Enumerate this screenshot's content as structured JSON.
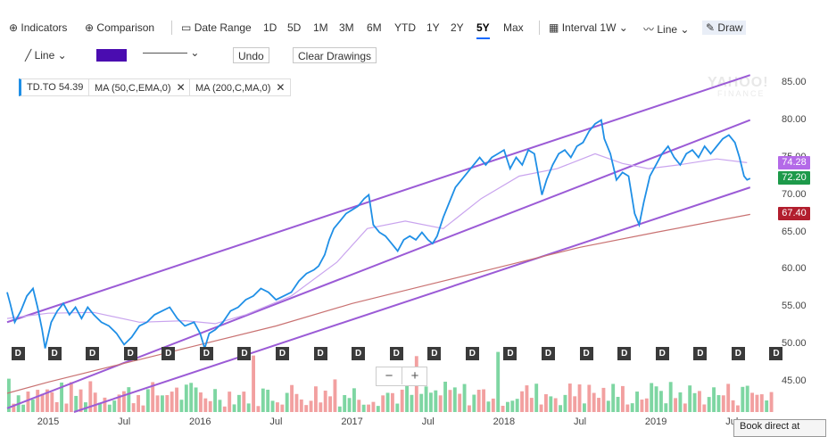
{
  "toolbar": {
    "indicators": "Indicators",
    "comparison": "Comparison",
    "date_range": "Date Range",
    "ranges": [
      "1D",
      "5D",
      "1M",
      "3M",
      "6M",
      "YTD",
      "1Y",
      "2Y",
      "5Y",
      "Max"
    ],
    "active_range": "5Y",
    "interval": "Interval",
    "interval_value": "1W",
    "chart_type": "Line",
    "draw": "Draw"
  },
  "drawbar": {
    "tool": "Line",
    "color": "#4a0cb0",
    "undo": "Undo",
    "clear": "Clear Drawings"
  },
  "legend": {
    "symbol": "TD.TO",
    "price": "54.39",
    "ma1": "MA (50,C,EMA,0)",
    "ma2": "MA (200,C,MA,0)",
    "close": "✕"
  },
  "watermark": {
    "line1": "YAHOO!",
    "line2": "FINANCE"
  },
  "zoom": {
    "minus": "−",
    "plus": "+"
  },
  "dividend_marker": "D",
  "book": "Book direct at",
  "price_tags": [
    {
      "label": "74.28",
      "value": 74.28,
      "color": "#b46ae8"
    },
    {
      "label": "72.20",
      "value": 72.2,
      "color": "#1d9a4a"
    },
    {
      "label": "67.40",
      "value": 67.4,
      "color": "#b21e2e"
    }
  ],
  "colors": {
    "price_line": "#1f8fe6",
    "ema50": "#c9a4ee",
    "ma200": "#c97272",
    "channel": "#9b5bd6",
    "vol_up": "#7ed6a2",
    "vol_down": "#f2a0a0"
  },
  "chart_data": {
    "type": "line",
    "x_labels": [
      "2015",
      "Jul",
      "2016",
      "Jul",
      "2017",
      "Jul",
      "2018",
      "Jul",
      "2019",
      "Jul"
    ],
    "x_label_times": [
      2015.0,
      2015.5,
      2016.0,
      2016.5,
      2017.0,
      2017.5,
      2018.0,
      2018.5,
      2019.0,
      2019.5
    ],
    "yticks": [
      "85.00",
      "80.00",
      "75.00",
      "70.00",
      "65.00",
      "60.00",
      "55.00",
      "50.00",
      "45.00"
    ],
    "ytick_values": [
      85,
      80,
      75,
      70,
      65,
      60,
      55,
      50,
      45
    ],
    "ylim": [
      41,
      86.5
    ],
    "xlim": [
      2014.73,
      2019.78
    ],
    "dividend_times": [
      2014.74,
      2014.98,
      2015.23,
      2015.48,
      2015.73,
      2015.98,
      2016.23,
      2016.48,
      2016.73,
      2016.98,
      2017.23,
      2017.48,
      2017.73,
      2017.98,
      2018.23,
      2018.48,
      2018.73,
      2018.98,
      2019.23,
      2019.48,
      2019.73
    ],
    "series": [
      {
        "name": "TD.TO",
        "values": [
          [
            2014.73,
            57.0
          ],
          [
            2014.75,
            55.5
          ],
          [
            2014.78,
            53.0
          ],
          [
            2014.82,
            54.5
          ],
          [
            2014.86,
            56.5
          ],
          [
            2014.9,
            57.5
          ],
          [
            2014.93,
            55.0
          ],
          [
            2014.96,
            52.0
          ],
          [
            2014.98,
            49.5
          ],
          [
            2015.02,
            53.0
          ],
          [
            2015.06,
            54.5
          ],
          [
            2015.1,
            55.5
          ],
          [
            2015.14,
            54.0
          ],
          [
            2015.18,
            55.0
          ],
          [
            2015.22,
            53.5
          ],
          [
            2015.26,
            55.0
          ],
          [
            2015.3,
            54.0
          ],
          [
            2015.35,
            53.0
          ],
          [
            2015.4,
            52.5
          ],
          [
            2015.45,
            51.5
          ],
          [
            2015.5,
            50.0
          ],
          [
            2015.55,
            51.0
          ],
          [
            2015.6,
            52.5
          ],
          [
            2015.65,
            53.0
          ],
          [
            2015.7,
            54.0
          ],
          [
            2015.75,
            54.5
          ],
          [
            2015.8,
            55.0
          ],
          [
            2015.85,
            53.5
          ],
          [
            2015.9,
            52.5
          ],
          [
            2015.96,
            53.0
          ],
          [
            2016.0,
            51.5
          ],
          [
            2016.03,
            49.5
          ],
          [
            2016.06,
            51.5
          ],
          [
            2016.1,
            52.0
          ],
          [
            2016.15,
            53.0
          ],
          [
            2016.2,
            54.5
          ],
          [
            2016.25,
            55.0
          ],
          [
            2016.3,
            56.0
          ],
          [
            2016.35,
            56.5
          ],
          [
            2016.4,
            57.5
          ],
          [
            2016.45,
            57.0
          ],
          [
            2016.5,
            56.0
          ],
          [
            2016.55,
            56.5
          ],
          [
            2016.6,
            57.0
          ],
          [
            2016.65,
            58.5
          ],
          [
            2016.7,
            59.5
          ],
          [
            2016.75,
            60.0
          ],
          [
            2016.78,
            60.5
          ],
          [
            2016.82,
            62.0
          ],
          [
            2016.85,
            64.0
          ],
          [
            2016.88,
            65.5
          ],
          [
            2016.92,
            66.5
          ],
          [
            2016.96,
            67.5
          ],
          [
            2017.0,
            68.0
          ],
          [
            2017.04,
            68.5
          ],
          [
            2017.08,
            69.5
          ],
          [
            2017.11,
            70.0
          ],
          [
            2017.14,
            66.0
          ],
          [
            2017.18,
            65.0
          ],
          [
            2017.22,
            64.5
          ],
          [
            2017.26,
            63.5
          ],
          [
            2017.3,
            62.5
          ],
          [
            2017.34,
            64.0
          ],
          [
            2017.38,
            64.5
          ],
          [
            2017.42,
            64.0
          ],
          [
            2017.46,
            65.0
          ],
          [
            2017.5,
            64.0
          ],
          [
            2017.53,
            63.5
          ],
          [
            2017.56,
            64.5
          ],
          [
            2017.6,
            67.0
          ],
          [
            2017.64,
            69.0
          ],
          [
            2017.68,
            71.0
          ],
          [
            2017.72,
            72.0
          ],
          [
            2017.76,
            73.0
          ],
          [
            2017.8,
            74.0
          ],
          [
            2017.84,
            75.0
          ],
          [
            2017.88,
            74.0
          ],
          [
            2017.92,
            75.0
          ],
          [
            2017.96,
            75.5
          ],
          [
            2018.0,
            76.0
          ],
          [
            2018.04,
            73.5
          ],
          [
            2018.08,
            75.0
          ],
          [
            2018.12,
            74.0
          ],
          [
            2018.16,
            76.0
          ],
          [
            2018.2,
            75.5
          ],
          [
            2018.25,
            70.0
          ],
          [
            2018.28,
            72.0
          ],
          [
            2018.32,
            74.0
          ],
          [
            2018.36,
            75.5
          ],
          [
            2018.4,
            76.0
          ],
          [
            2018.44,
            75.0
          ],
          [
            2018.48,
            76.5
          ],
          [
            2018.52,
            77.0
          ],
          [
            2018.56,
            78.5
          ],
          [
            2018.6,
            79.5
          ],
          [
            2018.64,
            80.0
          ],
          [
            2018.66,
            77.5
          ],
          [
            2018.7,
            75.5
          ],
          [
            2018.74,
            72.0
          ],
          [
            2018.78,
            73.0
          ],
          [
            2018.82,
            72.5
          ],
          [
            2018.86,
            67.5
          ],
          [
            2018.89,
            66.0
          ],
          [
            2018.92,
            69.0
          ],
          [
            2018.96,
            72.5
          ],
          [
            2019.0,
            74.0
          ],
          [
            2019.04,
            75.5
          ],
          [
            2019.08,
            76.5
          ],
          [
            2019.12,
            75.0
          ],
          [
            2019.16,
            74.0
          ],
          [
            2019.2,
            75.5
          ],
          [
            2019.24,
            76.0
          ],
          [
            2019.28,
            75.0
          ],
          [
            2019.32,
            76.5
          ],
          [
            2019.36,
            75.5
          ],
          [
            2019.4,
            76.5
          ],
          [
            2019.44,
            77.5
          ],
          [
            2019.48,
            78.0
          ],
          [
            2019.52,
            77.0
          ],
          [
            2019.55,
            75.0
          ],
          [
            2019.58,
            72.5
          ],
          [
            2019.6,
            72.0
          ],
          [
            2019.62,
            72.2
          ]
        ]
      },
      {
        "name": "MA (50,C,EMA,0)",
        "values": [
          [
            2014.73,
            53.5
          ],
          [
            2015.0,
            54.2
          ],
          [
            2015.3,
            54.3
          ],
          [
            2015.6,
            53.0
          ],
          [
            2015.9,
            53.2
          ],
          [
            2016.1,
            52.8
          ],
          [
            2016.3,
            54.0
          ],
          [
            2016.6,
            56.5
          ],
          [
            2016.9,
            61.0
          ],
          [
            2017.1,
            65.5
          ],
          [
            2017.35,
            66.5
          ],
          [
            2017.6,
            65.5
          ],
          [
            2017.85,
            69.5
          ],
          [
            2018.1,
            72.5
          ],
          [
            2018.35,
            73.5
          ],
          [
            2018.6,
            75.5
          ],
          [
            2018.78,
            74.2
          ],
          [
            2018.95,
            73.5
          ],
          [
            2019.15,
            74.0
          ],
          [
            2019.4,
            74.8
          ],
          [
            2019.6,
            74.3
          ]
        ]
      },
      {
        "name": "MA (200,C,MA,0)",
        "values": [
          [
            2014.73,
            43.5
          ],
          [
            2015.0,
            45.0
          ],
          [
            2015.5,
            47.5
          ],
          [
            2016.0,
            50.0
          ],
          [
            2016.5,
            52.5
          ],
          [
            2017.0,
            55.5
          ],
          [
            2017.5,
            58.0
          ],
          [
            2018.0,
            60.5
          ],
          [
            2018.5,
            63.0
          ],
          [
            2019.0,
            65.0
          ],
          [
            2019.62,
            67.4
          ]
        ]
      }
    ],
    "channel_lines": [
      {
        "from": [
          2014.73,
          53.0
        ],
        "to": [
          2019.62,
          86.0
        ]
      },
      {
        "from": [
          2014.73,
          41.5
        ],
        "to": [
          2019.62,
          80.0
        ]
      },
      {
        "from": [
          2015.17,
          41.0
        ],
        "to": [
          2019.62,
          71.0
        ]
      }
    ],
    "volume": {
      "count": 160,
      "max_height": 64
    }
  }
}
